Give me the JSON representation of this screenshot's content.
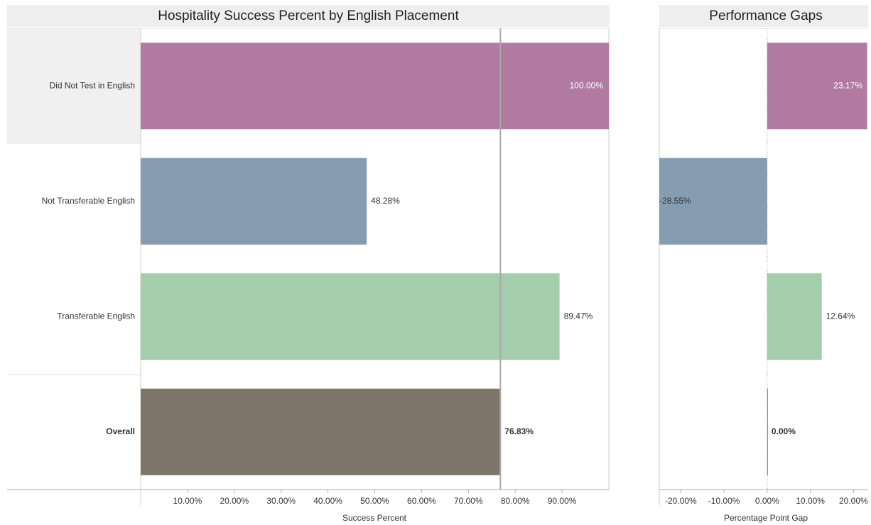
{
  "chart_data": [
    {
      "type": "bar",
      "orientation": "horizontal",
      "title": "Hospitality Success Percent by English Placement",
      "categories": [
        "Did Not Test in English",
        "Not Transferable English",
        "Transferable English",
        "Overall"
      ],
      "values": [
        100,
        48.28,
        89.47,
        76.83
      ],
      "value_labels": [
        "100.00%",
        "48.28%",
        "89.47%",
        "76.83%"
      ],
      "colors": [
        "#b07aa1",
        "#869db1",
        "#a3cdab",
        "#7f766b"
      ],
      "xlabel": "Success Percent",
      "xlim": [
        0,
        100
      ],
      "xticks": [
        {
          "value": 10,
          "label": "10.00%"
        },
        {
          "value": 20,
          "label": "20.00%"
        },
        {
          "value": 30,
          "label": "30.00%"
        },
        {
          "value": 40,
          "label": "40.00%"
        },
        {
          "value": 50,
          "label": "50.00%"
        },
        {
          "value": 60,
          "label": "60.00%"
        },
        {
          "value": 70,
          "label": "70.00%"
        },
        {
          "value": 80,
          "label": "80.00%"
        },
        {
          "value": 90,
          "label": "90.00%"
        }
      ],
      "reference_line": 76.83
    },
    {
      "type": "bar",
      "orientation": "horizontal",
      "title": "Performance Gaps",
      "values": [
        23.17,
        -28.55,
        12.64,
        0
      ],
      "value_labels": [
        "23.17%",
        "-28.55%",
        "12.64%",
        "0.00%"
      ],
      "colors": [
        "#b07aa1",
        "#869db1",
        "#a3cdab",
        "#7f766b"
      ],
      "xlabel": "Percentage Point Gap",
      "xlim": [
        -25,
        23.4
      ],
      "xticks": [
        {
          "value": -20,
          "label": "-20.00%"
        },
        {
          "value": -10,
          "label": "-10.00%"
        },
        {
          "value": 0,
          "label": "0.00%"
        },
        {
          "value": 10,
          "label": "10.00%"
        },
        {
          "value": 20,
          "label": "20.00%"
        }
      ]
    }
  ]
}
